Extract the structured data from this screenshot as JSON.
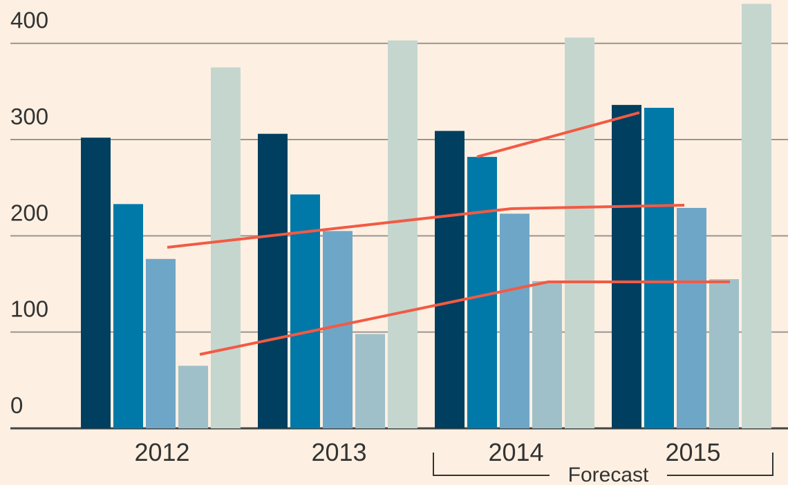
{
  "chart_data": {
    "type": "bar",
    "categories": [
      "2012",
      "2013",
      "2014",
      "2015"
    ],
    "series": [
      {
        "color": "#003f5f",
        "values": [
          302,
          306,
          309,
          336
        ]
      },
      {
        "color": "#0079a8",
        "values": [
          233,
          243,
          282,
          333
        ]
      },
      {
        "color": "#6ea6c8",
        "values": [
          176,
          205,
          223,
          229
        ]
      },
      {
        "color": "#9fc0c8",
        "values": [
          65,
          98,
          153,
          155
        ]
      },
      {
        "color": "#c5d6cf",
        "values": [
          375,
          403,
          406,
          441
        ]
      }
    ],
    "ylim": [
      0,
      445
    ],
    "yticks": [
      0,
      100,
      200,
      300,
      400
    ],
    "grid": true,
    "annotations": [
      "Forecast"
    ]
  }
}
